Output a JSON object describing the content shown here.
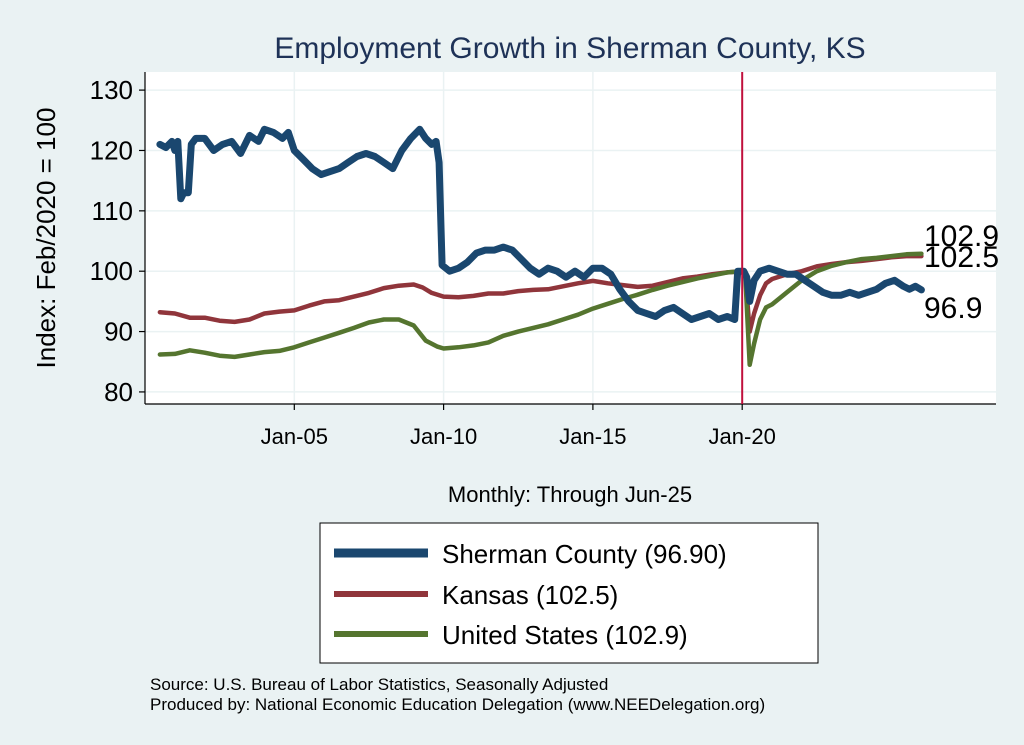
{
  "chart_data": {
    "type": "line",
    "title": "Employment Growth in Sherman  County, KS",
    "xlabel": "Monthly: Through Jun-25",
    "ylabel": "Index: Feb/2020 = 100",
    "ylim": [
      78,
      133
    ],
    "xlim": [
      2000.0,
      2028.5
    ],
    "yticks": [
      80,
      90,
      100,
      110,
      120,
      130
    ],
    "xticks": [
      {
        "value": 2005.0,
        "label": "Jan-05"
      },
      {
        "value": 2010.0,
        "label": "Jan-10"
      },
      {
        "value": 2015.0,
        "label": "Jan-15"
      },
      {
        "value": 2020.0,
        "label": "Jan-20"
      }
    ],
    "reference_line": {
      "x": 2020.0,
      "color": "#c0103c"
    },
    "grid": true,
    "legend_position": "bottom",
    "series": [
      {
        "name": "Sherman  County (96.90)",
        "color": "#1a476f",
        "end_label": "96.9",
        "points": [
          [
            2000.5,
            121
          ],
          [
            2000.7,
            120.5
          ],
          [
            2000.9,
            121.5
          ],
          [
            2001.0,
            120
          ],
          [
            2001.1,
            121.5
          ],
          [
            2001.2,
            112
          ],
          [
            2001.3,
            113
          ],
          [
            2001.45,
            113
          ],
          [
            2001.55,
            121
          ],
          [
            2001.7,
            122
          ],
          [
            2002.0,
            122
          ],
          [
            2002.3,
            120
          ],
          [
            2002.6,
            121
          ],
          [
            2002.9,
            121.5
          ],
          [
            2003.2,
            119.5
          ],
          [
            2003.5,
            122.5
          ],
          [
            2003.8,
            121.5
          ],
          [
            2004.0,
            123.5
          ],
          [
            2004.3,
            123
          ],
          [
            2004.6,
            122
          ],
          [
            2004.8,
            123
          ],
          [
            2005.0,
            120
          ],
          [
            2005.3,
            118.5
          ],
          [
            2005.6,
            117
          ],
          [
            2005.9,
            116
          ],
          [
            2006.2,
            116.5
          ],
          [
            2006.5,
            117
          ],
          [
            2006.8,
            118
          ],
          [
            2007.1,
            119
          ],
          [
            2007.4,
            119.5
          ],
          [
            2007.7,
            119
          ],
          [
            2008.0,
            118
          ],
          [
            2008.3,
            117
          ],
          [
            2008.6,
            120
          ],
          [
            2008.9,
            122
          ],
          [
            2009.2,
            123.5
          ],
          [
            2009.4,
            122
          ],
          [
            2009.6,
            121
          ],
          [
            2009.75,
            121.5
          ],
          [
            2009.85,
            118
          ],
          [
            2009.95,
            101
          ],
          [
            2010.2,
            100
          ],
          [
            2010.5,
            100.5
          ],
          [
            2010.8,
            101.5
          ],
          [
            2011.1,
            103
          ],
          [
            2011.4,
            103.5
          ],
          [
            2011.7,
            103.5
          ],
          [
            2012.0,
            104
          ],
          [
            2012.3,
            103.5
          ],
          [
            2012.6,
            102
          ],
          [
            2012.9,
            100.5
          ],
          [
            2013.2,
            99.5
          ],
          [
            2013.5,
            100.5
          ],
          [
            2013.8,
            100
          ],
          [
            2014.1,
            99
          ],
          [
            2014.4,
            100
          ],
          [
            2014.7,
            99
          ],
          [
            2015.0,
            100.5
          ],
          [
            2015.3,
            100.5
          ],
          [
            2015.6,
            99.5
          ],
          [
            2015.9,
            97
          ],
          [
            2016.2,
            95
          ],
          [
            2016.5,
            93.5
          ],
          [
            2016.8,
            93
          ],
          [
            2017.1,
            92.5
          ],
          [
            2017.4,
            93.5
          ],
          [
            2017.7,
            94
          ],
          [
            2018.0,
            93
          ],
          [
            2018.3,
            92
          ],
          [
            2018.6,
            92.5
          ],
          [
            2018.9,
            93
          ],
          [
            2019.2,
            92
          ],
          [
            2019.5,
            92.5
          ],
          [
            2019.75,
            92
          ],
          [
            2019.85,
            100
          ],
          [
            2020.05,
            100
          ],
          [
            2020.15,
            99
          ],
          [
            2020.25,
            95
          ],
          [
            2020.4,
            98.5
          ],
          [
            2020.6,
            100
          ],
          [
            2020.9,
            100.5
          ],
          [
            2021.2,
            100
          ],
          [
            2021.5,
            99.5
          ],
          [
            2021.8,
            99.5
          ],
          [
            2022.1,
            98.5
          ],
          [
            2022.4,
            97.5
          ],
          [
            2022.7,
            96.5
          ],
          [
            2023.0,
            96
          ],
          [
            2023.3,
            96
          ],
          [
            2023.6,
            96.5
          ],
          [
            2023.9,
            96
          ],
          [
            2024.2,
            96.5
          ],
          [
            2024.5,
            97
          ],
          [
            2024.8,
            98
          ],
          [
            2025.1,
            98.5
          ],
          [
            2025.4,
            97.5
          ],
          [
            2025.6,
            97
          ],
          [
            2025.8,
            97.5
          ],
          [
            2026.0,
            96.9
          ]
        ]
      },
      {
        "name": "Kansas (102.5)",
        "color": "#90353b",
        "end_label": "102.5",
        "points": [
          [
            2000.5,
            93.2
          ],
          [
            2001.0,
            93
          ],
          [
            2001.5,
            92.3
          ],
          [
            2002.0,
            92.3
          ],
          [
            2002.5,
            91.8
          ],
          [
            2003.0,
            91.6
          ],
          [
            2003.5,
            92
          ],
          [
            2004.0,
            93
          ],
          [
            2004.5,
            93.3
          ],
          [
            2005.0,
            93.5
          ],
          [
            2005.5,
            94.3
          ],
          [
            2006.0,
            95
          ],
          [
            2006.5,
            95.2
          ],
          [
            2007.0,
            95.8
          ],
          [
            2007.5,
            96.4
          ],
          [
            2008.0,
            97.2
          ],
          [
            2008.5,
            97.6
          ],
          [
            2009.0,
            97.8
          ],
          [
            2009.3,
            97.3
          ],
          [
            2009.6,
            96.4
          ],
          [
            2010.0,
            95.8
          ],
          [
            2010.5,
            95.7
          ],
          [
            2011.0,
            95.9
          ],
          [
            2011.5,
            96.3
          ],
          [
            2012.0,
            96.3
          ],
          [
            2012.5,
            96.7
          ],
          [
            2013.0,
            96.9
          ],
          [
            2013.5,
            97
          ],
          [
            2014.0,
            97.5
          ],
          [
            2014.5,
            98
          ],
          [
            2015.0,
            98.4
          ],
          [
            2015.5,
            98
          ],
          [
            2016.0,
            97.7
          ],
          [
            2016.5,
            97.4
          ],
          [
            2017.0,
            97.6
          ],
          [
            2017.5,
            98.2
          ],
          [
            2018.0,
            98.8
          ],
          [
            2018.5,
            99.1
          ],
          [
            2019.0,
            99.5
          ],
          [
            2019.5,
            99.8
          ],
          [
            2020.0,
            100
          ],
          [
            2020.1,
            99.5
          ],
          [
            2020.25,
            90
          ],
          [
            2020.4,
            93
          ],
          [
            2020.6,
            96
          ],
          [
            2020.8,
            98
          ],
          [
            2021.0,
            98.7
          ],
          [
            2021.5,
            99.5
          ],
          [
            2022.0,
            100
          ],
          [
            2022.5,
            100.8
          ],
          [
            2023.0,
            101.2
          ],
          [
            2023.5,
            101.5
          ],
          [
            2024.0,
            101.7
          ],
          [
            2024.5,
            102
          ],
          [
            2025.0,
            102.3
          ],
          [
            2025.5,
            102.5
          ],
          [
            2026.0,
            102.5
          ]
        ]
      },
      {
        "name": "United States (102.9)",
        "color": "#55752f",
        "end_label": "102.9",
        "points": [
          [
            2000.5,
            86.2
          ],
          [
            2001.0,
            86.3
          ],
          [
            2001.5,
            86.9
          ],
          [
            2002.0,
            86.5
          ],
          [
            2002.5,
            86
          ],
          [
            2003.0,
            85.8
          ],
          [
            2003.5,
            86.2
          ],
          [
            2004.0,
            86.6
          ],
          [
            2004.5,
            86.8
          ],
          [
            2005.0,
            87.4
          ],
          [
            2005.5,
            88.2
          ],
          [
            2006.0,
            89
          ],
          [
            2006.5,
            89.8
          ],
          [
            2007.0,
            90.6
          ],
          [
            2007.5,
            91.5
          ],
          [
            2008.0,
            92
          ],
          [
            2008.5,
            92
          ],
          [
            2009.0,
            91
          ],
          [
            2009.4,
            88.5
          ],
          [
            2009.8,
            87.5
          ],
          [
            2010.0,
            87.2
          ],
          [
            2010.5,
            87.4
          ],
          [
            2011.0,
            87.7
          ],
          [
            2011.5,
            88.2
          ],
          [
            2012.0,
            89.3
          ],
          [
            2012.5,
            90
          ],
          [
            2013.0,
            90.6
          ],
          [
            2013.5,
            91.2
          ],
          [
            2014.0,
            92
          ],
          [
            2014.5,
            92.8
          ],
          [
            2015.0,
            93.8
          ],
          [
            2015.5,
            94.6
          ],
          [
            2016.0,
            95.4
          ],
          [
            2016.5,
            96.1
          ],
          [
            2017.0,
            96.9
          ],
          [
            2017.5,
            97.6
          ],
          [
            2018.0,
            98.2
          ],
          [
            2018.5,
            98.8
          ],
          [
            2019.0,
            99.3
          ],
          [
            2019.5,
            99.8
          ],
          [
            2020.0,
            100
          ],
          [
            2020.1,
            99.5
          ],
          [
            2020.25,
            84.5
          ],
          [
            2020.4,
            88
          ],
          [
            2020.6,
            92
          ],
          [
            2020.8,
            94
          ],
          [
            2021.0,
            94.5
          ],
          [
            2021.5,
            96.5
          ],
          [
            2022.0,
            98.5
          ],
          [
            2022.5,
            100
          ],
          [
            2023.0,
            100.9
          ],
          [
            2023.5,
            101.5
          ],
          [
            2024.0,
            102
          ],
          [
            2024.5,
            102.2
          ],
          [
            2025.0,
            102.5
          ],
          [
            2025.5,
            102.8
          ],
          [
            2026.0,
            102.9
          ]
        ]
      }
    ]
  },
  "source_line": "Source: U.S. Bureau of Labor Statistics, Seasonally Adjusted",
  "produced_line": "Produced by: National Economic Education Delegation (www.NEEDelegation.org)"
}
